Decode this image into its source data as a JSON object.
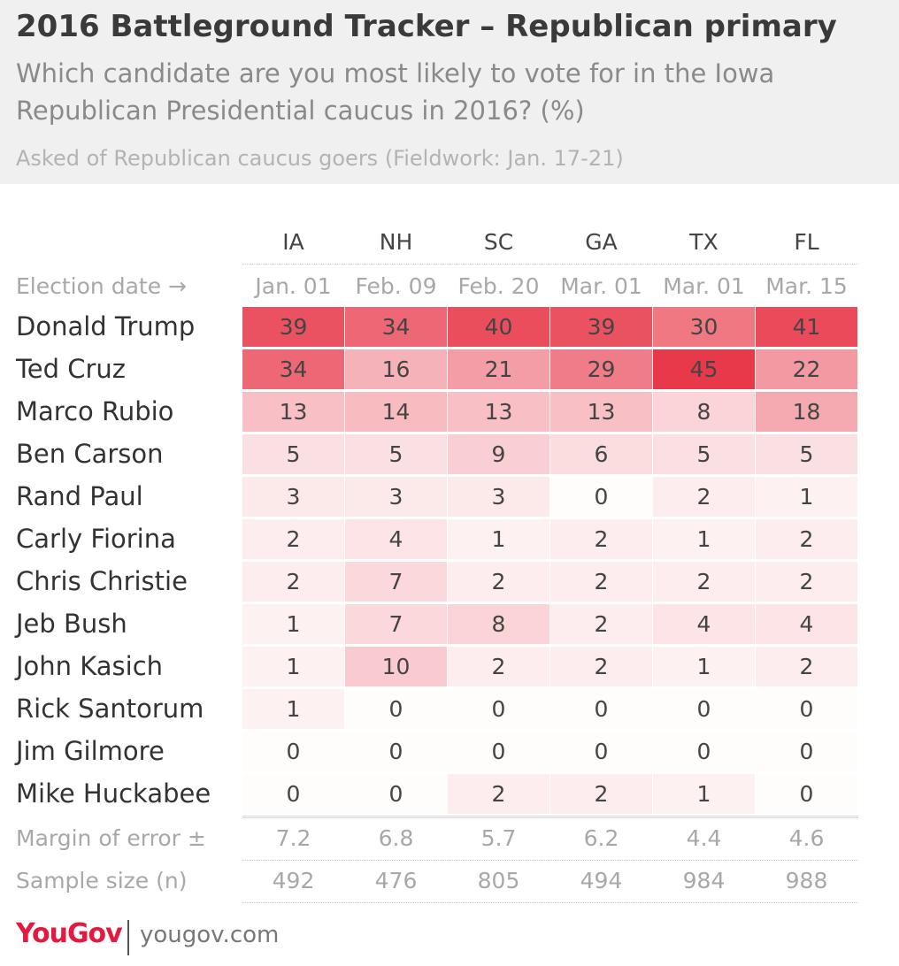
{
  "title": "2016 Battleground Tracker – Republican primary",
  "subtitle": "Which candidate are you most likely to vote for in the Iowa Republican Presidential caucus in 2016? (%)",
  "note": "Asked of Republican caucus goers (Fieldwork: Jan. 17-21)",
  "footer": {
    "logo": "YouGov",
    "site": "yougov.com"
  },
  "colors": {
    "heat_base": "#ffffff",
    "heat_max": "#e8394a",
    "header_bg": "#f0f0f0",
    "brand": "#e3193f"
  },
  "chart_data": {
    "type": "heatmap",
    "columns": [
      "IA",
      "NH",
      "SC",
      "GA",
      "TX",
      "FL"
    ],
    "election_date_label": "Election date →",
    "election_dates": [
      "Jan. 01",
      "Feb. 09",
      "Feb. 20",
      "Mar. 01",
      "Mar. 01",
      "Mar. 15"
    ],
    "rows": [
      {
        "name": "Donald Trump",
        "values": [
          39,
          34,
          40,
          39,
          30,
          41
        ]
      },
      {
        "name": "Ted Cruz",
        "values": [
          34,
          16,
          21,
          29,
          45,
          22
        ]
      },
      {
        "name": "Marco Rubio",
        "values": [
          13,
          14,
          13,
          13,
          8,
          18
        ]
      },
      {
        "name": "Ben Carson",
        "values": [
          5,
          5,
          9,
          6,
          5,
          5
        ]
      },
      {
        "name": "Rand Paul",
        "values": [
          3,
          3,
          3,
          0,
          2,
          1
        ]
      },
      {
        "name": "Carly Fiorina",
        "values": [
          2,
          4,
          1,
          2,
          1,
          2
        ]
      },
      {
        "name": "Chris Christie",
        "values": [
          2,
          7,
          2,
          2,
          2,
          2
        ]
      },
      {
        "name": "Jeb Bush",
        "values": [
          1,
          7,
          8,
          2,
          4,
          4
        ]
      },
      {
        "name": "John Kasich",
        "values": [
          1,
          10,
          2,
          2,
          1,
          2
        ]
      },
      {
        "name": "Rick Santorum",
        "values": [
          1,
          0,
          0,
          0,
          0,
          0
        ]
      },
      {
        "name": "Jim Gilmore",
        "values": [
          0,
          0,
          0,
          0,
          0,
          0
        ]
      },
      {
        "name": "Mike Huckabee",
        "values": [
          0,
          0,
          2,
          2,
          1,
          0
        ]
      }
    ],
    "margin_label": "Margin of error ±",
    "margin_of_error": [
      "7.2",
      "6.8",
      "5.7",
      "6.2",
      "4.4",
      "4.6"
    ],
    "sample_label": "Sample size (n)",
    "sample_size": [
      "492",
      "476",
      "805",
      "494",
      "984",
      "988"
    ]
  }
}
